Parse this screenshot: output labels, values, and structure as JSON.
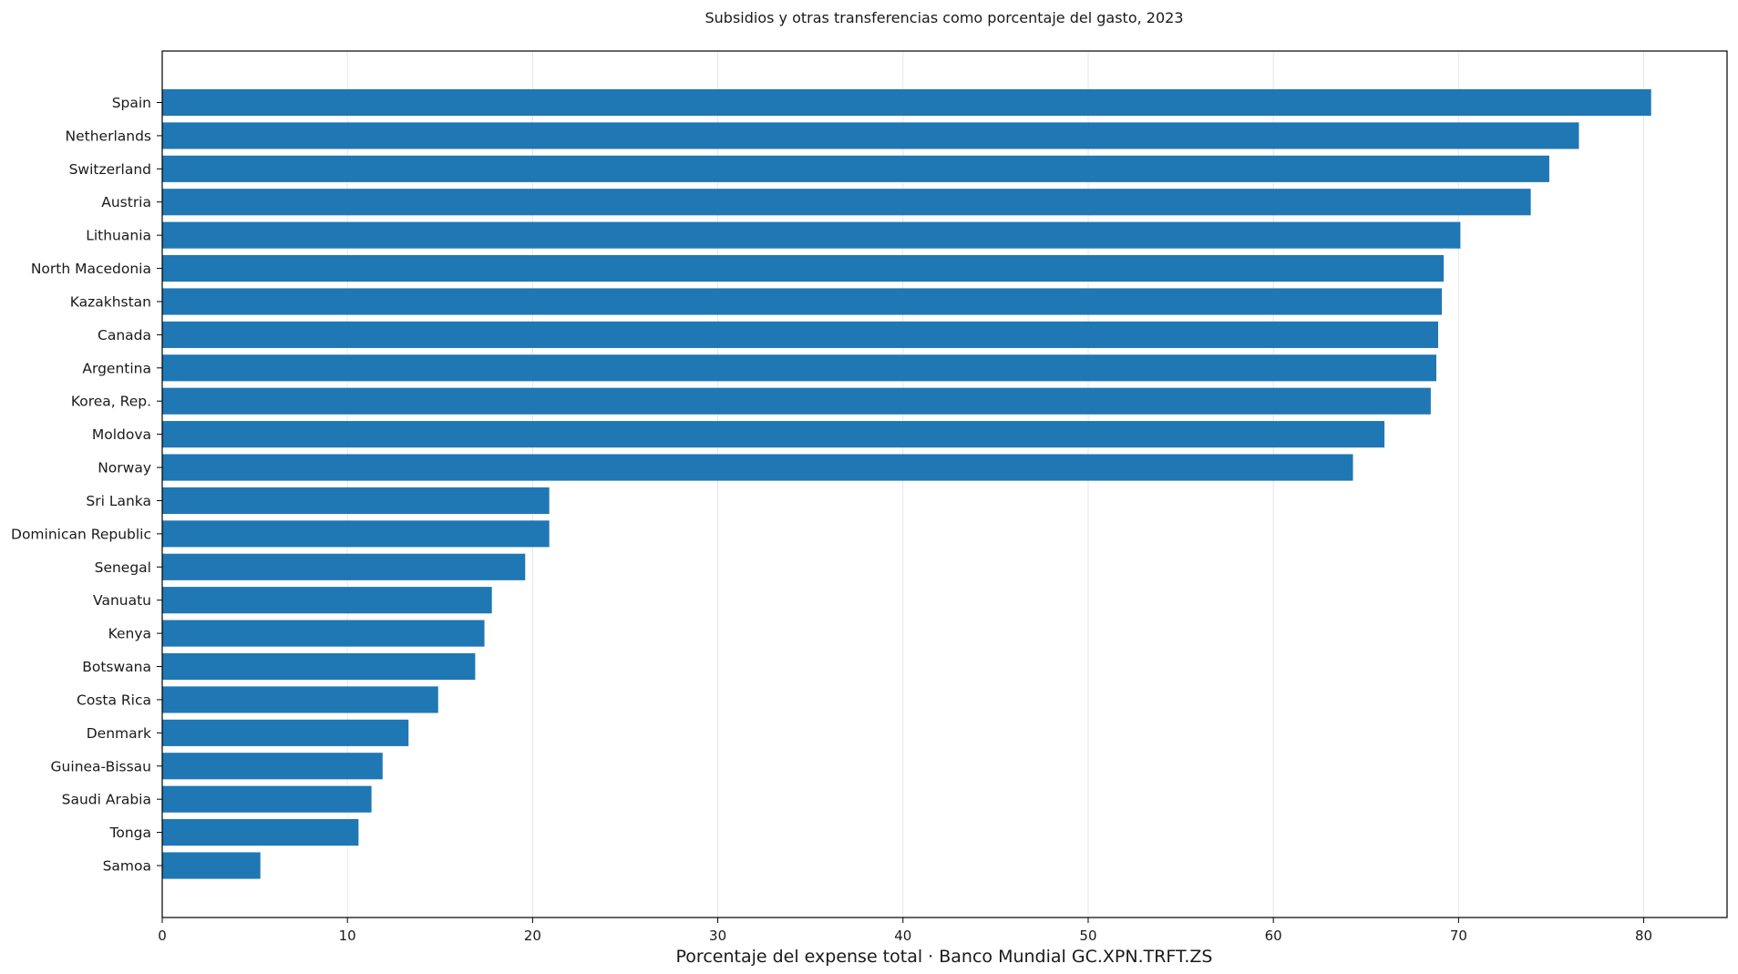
{
  "chart_data": {
    "type": "bar",
    "orientation": "horizontal",
    "title": "Subsidios y otras transferencias como porcentaje del gasto, 2023",
    "xlabel": "Porcentaje del expense total · Banco Mundial GC.XPN.TRFT.ZS",
    "ylabel": "",
    "xlim": [
      0,
      84.5
    ],
    "xticks": [
      0,
      10,
      20,
      30,
      40,
      50,
      60,
      70,
      80
    ],
    "grid": "x",
    "bar_color": "#1f77b4",
    "categories": [
      "Spain",
      "Netherlands",
      "Switzerland",
      "Austria",
      "Lithuania",
      "North Macedonia",
      "Kazakhstan",
      "Canada",
      "Argentina",
      "Korea, Rep.",
      "Moldova",
      "Norway",
      "Sri Lanka",
      "Dominican Republic",
      "Senegal",
      "Vanuatu",
      "Kenya",
      "Botswana",
      "Costa Rica",
      "Denmark",
      "Guinea-Bissau",
      "Saudi Arabia",
      "Tonga",
      "Samoa"
    ],
    "values": [
      80.4,
      76.5,
      74.9,
      73.9,
      70.1,
      69.2,
      69.1,
      68.9,
      68.8,
      68.5,
      66.0,
      64.3,
      20.9,
      20.9,
      19.6,
      17.8,
      17.4,
      16.9,
      14.9,
      13.3,
      11.9,
      11.3,
      10.6,
      5.3
    ]
  }
}
